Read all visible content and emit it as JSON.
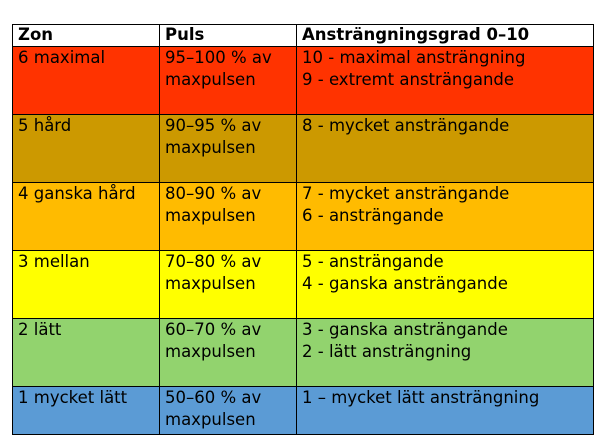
{
  "table": {
    "headers": {
      "zon": "Zon",
      "puls": "Puls",
      "grad": "Ansträngningsgrad 0–10"
    },
    "rows": [
      {
        "zon": "6 maximal",
        "puls_1": "95–100 % av",
        "puls_2": "maxpulsen",
        "grad_1": "10 - maximal ansträngning",
        "grad_2": "9 - extremt ansträngande",
        "color": "#ff3300"
      },
      {
        "zon": "5 hård",
        "puls_1": "90–95 % av",
        "puls_2": "maxpulsen",
        "grad_1": "8 - mycket ansträngande",
        "grad_2": "",
        "color": "#cc9900"
      },
      {
        "zon": "4 ganska hård",
        "puls_1": "80–90 % av",
        "puls_2": "maxpulsen",
        "grad_1": "7 - mycket ansträngande",
        "grad_2": "6 - ansträngande",
        "color": "#ffbb00"
      },
      {
        "zon": "3 mellan",
        "puls_1": "70–80 % av",
        "puls_2": "maxpulsen",
        "grad_1": "5 - ansträngande",
        "grad_2": "4 - ganska ansträngande",
        "color": "#ffff00"
      },
      {
        "zon": "2 lätt",
        "puls_1": "60–70 % av",
        "puls_2": "maxpulsen",
        "grad_1": "3 - ganska ansträngande",
        "grad_2": "2 - lätt ansträngning",
        "color": "#92d36e"
      },
      {
        "zon": "1 mycket lätt",
        "puls_1": "50–60 % av",
        "puls_2": "maxpulsen",
        "grad_1": "1 – mycket lätt ansträngning",
        "grad_2": "",
        "color": "#5b9bd5"
      }
    ]
  }
}
